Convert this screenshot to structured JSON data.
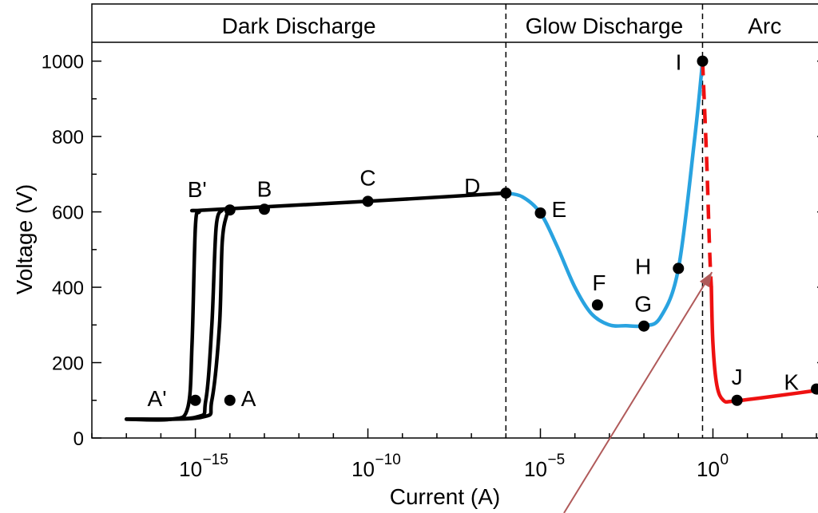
{
  "chart_data": {
    "type": "line",
    "xlabel": "Current  (A)",
    "ylabel": "Voltage  (V)",
    "x_scale": "log",
    "xlim_exp": [
      -18,
      3.3
    ],
    "ylim": [
      0,
      1050
    ],
    "x_ticks": [
      {
        "base": "10",
        "exp": "−15",
        "value": 1e-15
      },
      {
        "base": "10",
        "exp": "−10",
        "value": 1e-10
      },
      {
        "base": "10",
        "exp": "−5",
        "value": 1e-05
      },
      {
        "base": "10",
        "exp": "0",
        "value": 1
      }
    ],
    "y_ticks": [
      "0",
      "200",
      "400",
      "600",
      "800",
      "1000"
    ],
    "y_tick_values": [
      0,
      200,
      400,
      600,
      800,
      1000
    ],
    "regions": [
      {
        "label": "Dark Discharge",
        "x_from": 1e-18,
        "x_to": 1e-06
      },
      {
        "label": "Glow Discharge",
        "x_from": 1e-06,
        "x_to": 0.5
      },
      {
        "label": "Arc",
        "x_from": 0.5,
        "x_to": 2000
      }
    ],
    "boundaries": [
      1e-06,
      0.5
    ],
    "grid": false,
    "colors": {
      "dark": "#000000",
      "glow": "#29a3e0",
      "arc": "#ee1111",
      "arrow": "#b05a5a"
    },
    "series": [
      {
        "segment": "dark",
        "x": [
          1e-17,
          2e-16,
          6e-16,
          8e-16,
          1e-15,
          1.3e-15,
          2e-15,
          1e-10,
          1e-06
        ],
        "y": [
          50,
          50,
          80,
          250,
          560,
          600,
          605,
          628,
          650
        ]
      },
      {
        "segment": "dark",
        "x": [
          1e-17,
          1e-15,
          2e-15,
          3e-15,
          4e-15,
          6e-15
        ],
        "y": [
          50,
          55,
          100,
          300,
          560,
          605
        ]
      },
      {
        "segment": "dark",
        "x": [
          1e-17,
          1.5e-15,
          3e-15,
          5e-15,
          6e-15,
          8e-15,
          1e-14
        ],
        "y": [
          50,
          55,
          100,
          300,
          520,
          590,
          605
        ]
      },
      {
        "segment": "glow",
        "x": [
          1e-06,
          3e-06,
          1e-05,
          3e-05,
          0.0001,
          0.0003,
          0.001,
          0.003,
          0.01,
          0.03,
          0.1,
          0.3,
          0.5
        ],
        "y": [
          650,
          640,
          597,
          510,
          400,
          330,
          300,
          298,
          298,
          320,
          450,
          800,
          1000
        ]
      },
      {
        "segment": "arc_dashed",
        "x": [
          0.5,
          0.65,
          0.8,
          0.9
        ],
        "y": [
          1000,
          750,
          500,
          400
        ]
      },
      {
        "segment": "arc",
        "x": [
          0.9,
          1.0,
          1.3,
          2.0,
          4.0,
          50,
          2000
        ],
        "y": [
          400,
          250,
          140,
          100,
          98,
          110,
          130
        ]
      }
    ],
    "points": [
      {
        "label": "A'",
        "x": 1e-15,
        "y": 100
      },
      {
        "label": "A",
        "x": 1e-14,
        "y": 100
      },
      {
        "label": "B'",
        "x": 1e-14,
        "y": 605
      },
      {
        "label": "B",
        "x": 1e-13,
        "y": 607
      },
      {
        "label": "C",
        "x": 1e-10,
        "y": 628
      },
      {
        "label": "D",
        "x": 1e-06,
        "y": 650
      },
      {
        "label": "E",
        "x": 1e-05,
        "y": 597
      },
      {
        "label": "F",
        "x": 0.00045,
        "y": 353
      },
      {
        "label": "G",
        "x": 0.01,
        "y": 297
      },
      {
        "label": "H",
        "x": 0.1,
        "y": 450
      },
      {
        "label": "I",
        "x": 0.5,
        "y": 1000
      },
      {
        "label": "J",
        "x": 5,
        "y": 100
      },
      {
        "label": "K",
        "x": 1000,
        "y": 130
      }
    ]
  }
}
